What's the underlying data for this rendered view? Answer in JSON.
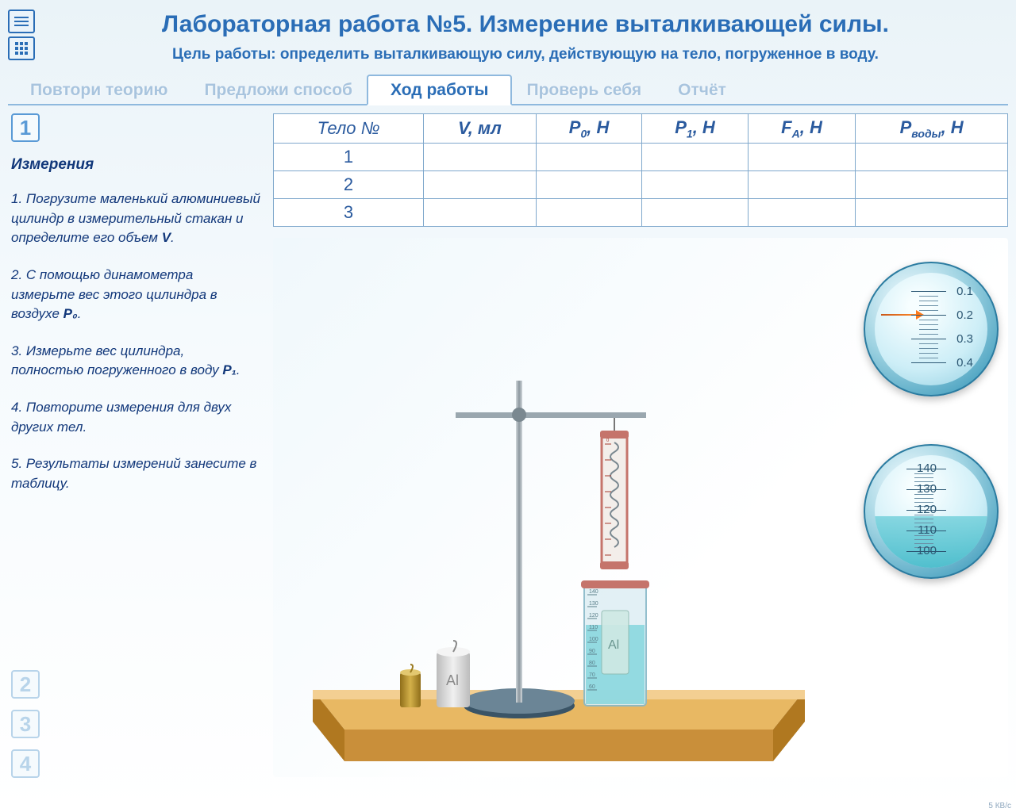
{
  "header": {
    "title": "Лабораторная работа №5.  Измерение выталкивающей силы.",
    "objective": "Цель работы: определить выталкивающую силу, действующую на тело, погруженное в воду."
  },
  "tabs": [
    {
      "label": "Повтори теорию",
      "active": false
    },
    {
      "label": "Предложи способ",
      "active": false
    },
    {
      "label": "Ход работы",
      "active": true
    },
    {
      "label": "Проверь себя",
      "active": false
    },
    {
      "label": "Отчёт",
      "active": false
    }
  ],
  "current_step": "1",
  "step_title": "Измерения",
  "instructions": [
    "1. Погрузите маленький алюминиевый цилиндр в измерительный стакан и определите его  объем <b>V</b>.",
    "2. С помощью динамометра измерьте вес этого цилиндра в воздухе <b>P₀</b>.",
    "3. Измерьте вес цилиндра, полностью погруженного в воду <b>P₁</b>.",
    "4. Повторите измерения для двух других тел.",
    "5. Результаты измерений занесите в таблицу."
  ],
  "other_steps": [
    "2",
    "3",
    "4"
  ],
  "table": {
    "headers": [
      "Тело №",
      "V, мл",
      "P₀, H",
      "P₁, H",
      "Fᴀ, H",
      "Pводы, H"
    ],
    "headers_html": [
      "Тело №",
      "<i>V</i>, мл",
      "<i>P</i><sub>0</sub>, H",
      "<i>P</i><sub>1</sub>, H",
      "<i>F</i><sub>A</sub>, H",
      "<i>P</i><sub>воды</sub>, H"
    ],
    "rows": [
      [
        "1",
        "",
        "",
        "",
        "",
        ""
      ],
      [
        "2",
        "",
        "",
        "",
        "",
        ""
      ],
      [
        "3",
        "",
        "",
        "",
        "",
        ""
      ]
    ]
  },
  "dynamometer_zoom": {
    "marks": [
      "0.1",
      "0.2",
      "0.3",
      "0.4"
    ],
    "needle_value": 0.2,
    "min": 0.0,
    "max": 0.4,
    "step": 0.1,
    "needle_color": "#ff7a1a"
  },
  "beaker_zoom": {
    "marks": [
      "140",
      "130",
      "120",
      "110",
      "100"
    ],
    "water_level": 110,
    "min": 100,
    "max": 140,
    "step": 10,
    "water_color": "#4cc3d1"
  },
  "apparatus": {
    "weights": [
      {
        "label": "",
        "material": "brass",
        "color_top": "#d4b14a",
        "color_body": "#b88f2a"
      },
      {
        "label": "Al",
        "material": "aluminum-large",
        "color_top": "#f3f3f3",
        "color_body": "#dcdcdc"
      }
    ],
    "submerged_label": "Al",
    "beaker_small_marks": [
      "140",
      "130",
      "120",
      "110",
      "100",
      "90",
      "80",
      "70",
      "60"
    ],
    "table_color": "#e0a94a",
    "table_edge_color": "#b07820"
  },
  "colors": {
    "primary": "#2a6db6",
    "text_instr": "#11377a",
    "border": "#7fa8cc",
    "bg_top": "#eaf3f8"
  },
  "status_text": "5 КВ/с"
}
